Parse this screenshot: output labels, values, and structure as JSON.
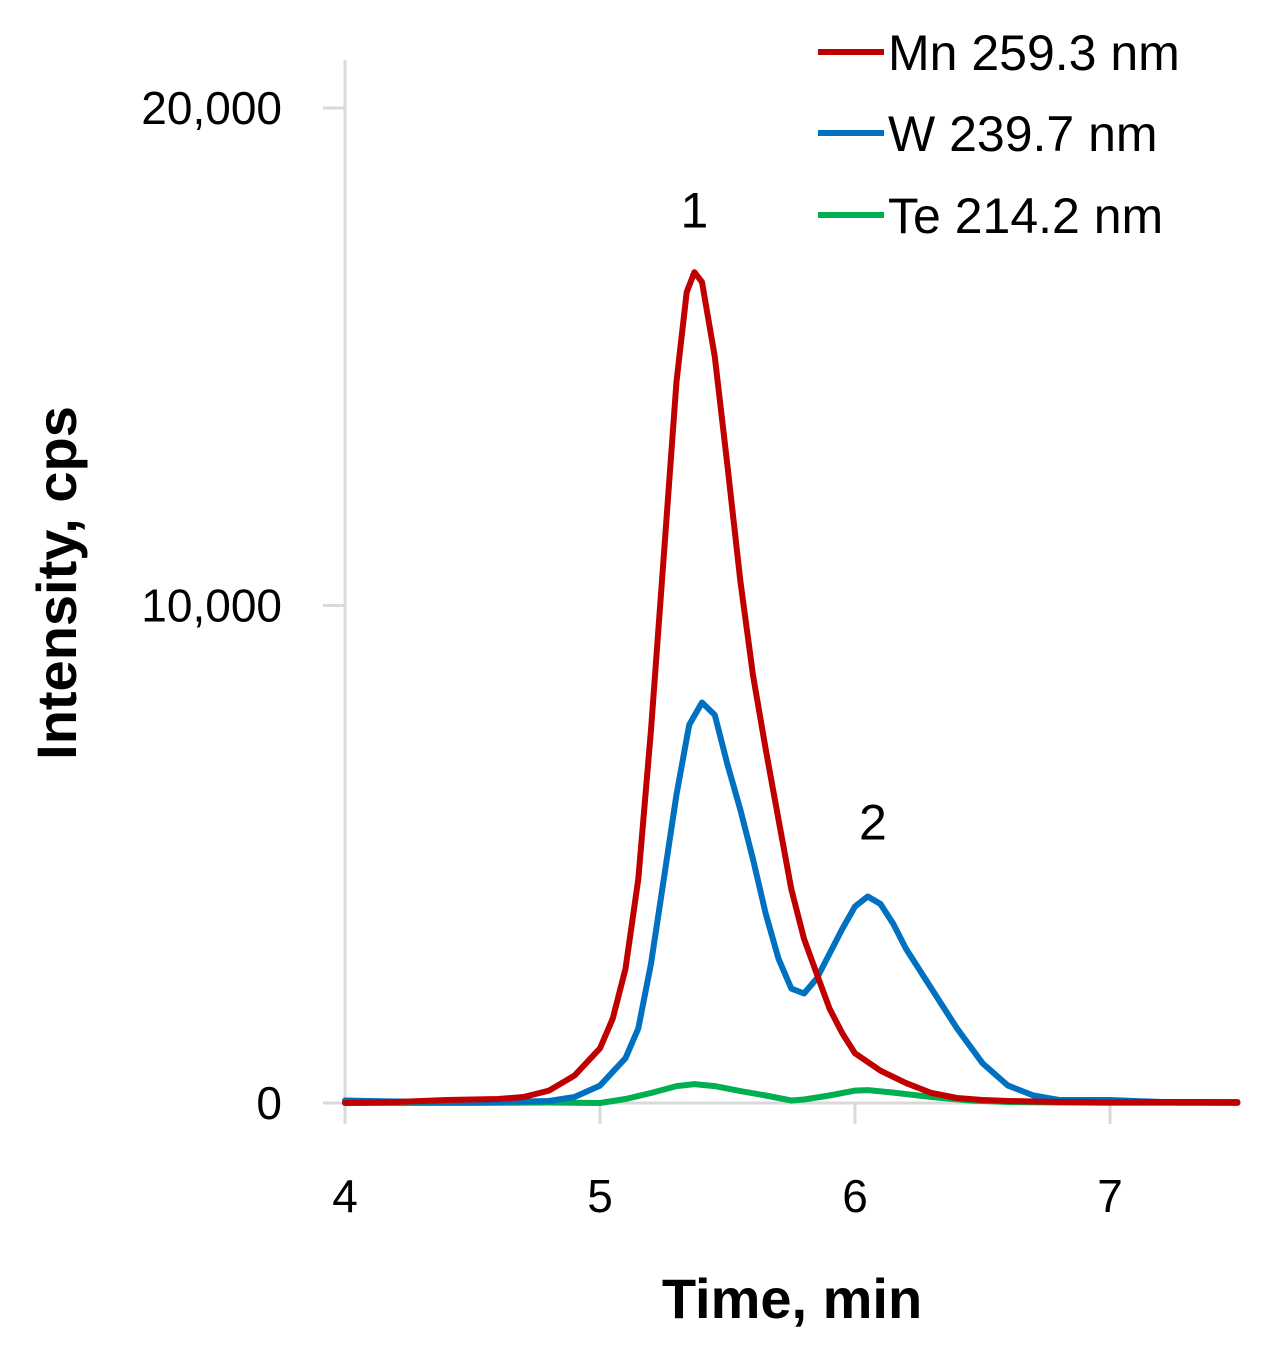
{
  "chart_data": {
    "type": "line",
    "title": "",
    "xlabel": "Time, min",
    "ylabel": "Intensity, cps",
    "xlim": [
      4,
      7.5
    ],
    "ylim": [
      0,
      20000
    ],
    "x_ticks": [
      4,
      5,
      6,
      7
    ],
    "x_tick_labels": [
      "4",
      "5",
      "6",
      "7"
    ],
    "y_ticks": [
      0,
      10000,
      20000
    ],
    "y_tick_labels": [
      "0",
      "10,000",
      "20,000"
    ],
    "grid": false,
    "legend_position": "top-right",
    "annotations": [
      {
        "label": "1",
        "x": 5.37,
        "y": 17600
      },
      {
        "label": "2",
        "x": 6.07,
        "y": 5300
      }
    ],
    "series": [
      {
        "name": "Mn 259.3 nm",
        "color": "#c00000",
        "points": [
          [
            4.0,
            0
          ],
          [
            4.2,
            20
          ],
          [
            4.4,
            60
          ],
          [
            4.6,
            80
          ],
          [
            4.7,
            120
          ],
          [
            4.8,
            250
          ],
          [
            4.9,
            550
          ],
          [
            5.0,
            1100
          ],
          [
            5.05,
            1700
          ],
          [
            5.1,
            2700
          ],
          [
            5.15,
            4500
          ],
          [
            5.2,
            7500
          ],
          [
            5.25,
            11000
          ],
          [
            5.3,
            14500
          ],
          [
            5.34,
            16300
          ],
          [
            5.37,
            16700
          ],
          [
            5.4,
            16500
          ],
          [
            5.45,
            15000
          ],
          [
            5.5,
            12800
          ],
          [
            5.55,
            10500
          ],
          [
            5.6,
            8600
          ],
          [
            5.65,
            7100
          ],
          [
            5.7,
            5700
          ],
          [
            5.75,
            4300
          ],
          [
            5.8,
            3300
          ],
          [
            5.85,
            2600
          ],
          [
            5.9,
            1900
          ],
          [
            5.95,
            1400
          ],
          [
            6.0,
            1000
          ],
          [
            6.1,
            650
          ],
          [
            6.2,
            400
          ],
          [
            6.3,
            200
          ],
          [
            6.4,
            100
          ],
          [
            6.5,
            60
          ],
          [
            6.6,
            40
          ],
          [
            6.8,
            20
          ],
          [
            7.0,
            10
          ],
          [
            7.2,
            20
          ],
          [
            7.5,
            10
          ]
        ]
      },
      {
        "name": "W 239.7 nm",
        "color": "#0070c0",
        "points": [
          [
            4.0,
            50
          ],
          [
            4.2,
            30
          ],
          [
            4.4,
            20
          ],
          [
            4.6,
            20
          ],
          [
            4.8,
            40
          ],
          [
            4.9,
            120
          ],
          [
            5.0,
            350
          ],
          [
            5.1,
            900
          ],
          [
            5.15,
            1500
          ],
          [
            5.2,
            2800
          ],
          [
            5.25,
            4500
          ],
          [
            5.3,
            6200
          ],
          [
            5.35,
            7600
          ],
          [
            5.4,
            8050
          ],
          [
            5.45,
            7800
          ],
          [
            5.5,
            6800
          ],
          [
            5.55,
            5900
          ],
          [
            5.6,
            4900
          ],
          [
            5.65,
            3800
          ],
          [
            5.7,
            2900
          ],
          [
            5.75,
            2300
          ],
          [
            5.8,
            2200
          ],
          [
            5.85,
            2500
          ],
          [
            5.9,
            3000
          ],
          [
            5.95,
            3500
          ],
          [
            6.0,
            3950
          ],
          [
            6.05,
            4150
          ],
          [
            6.1,
            4000
          ],
          [
            6.15,
            3600
          ],
          [
            6.2,
            3100
          ],
          [
            6.3,
            2300
          ],
          [
            6.4,
            1500
          ],
          [
            6.5,
            800
          ],
          [
            6.6,
            350
          ],
          [
            6.7,
            150
          ],
          [
            6.8,
            60
          ],
          [
            7.0,
            60
          ],
          [
            7.2,
            20
          ],
          [
            7.5,
            20
          ]
        ]
      },
      {
        "name": "Te 214.2 nm",
        "color": "#00b050",
        "points": [
          [
            4.0,
            0
          ],
          [
            4.5,
            0
          ],
          [
            4.8,
            10
          ],
          [
            5.0,
            0
          ],
          [
            5.1,
            80
          ],
          [
            5.2,
            200
          ],
          [
            5.3,
            340
          ],
          [
            5.37,
            380
          ],
          [
            5.45,
            340
          ],
          [
            5.55,
            240
          ],
          [
            5.65,
            150
          ],
          [
            5.75,
            50
          ],
          [
            5.8,
            70
          ],
          [
            5.9,
            150
          ],
          [
            6.0,
            250
          ],
          [
            6.05,
            260
          ],
          [
            6.15,
            210
          ],
          [
            6.3,
            120
          ],
          [
            6.45,
            50
          ],
          [
            6.6,
            20
          ],
          [
            6.8,
            10
          ],
          [
            7.0,
            5
          ],
          [
            7.5,
            0
          ]
        ]
      }
    ]
  }
}
